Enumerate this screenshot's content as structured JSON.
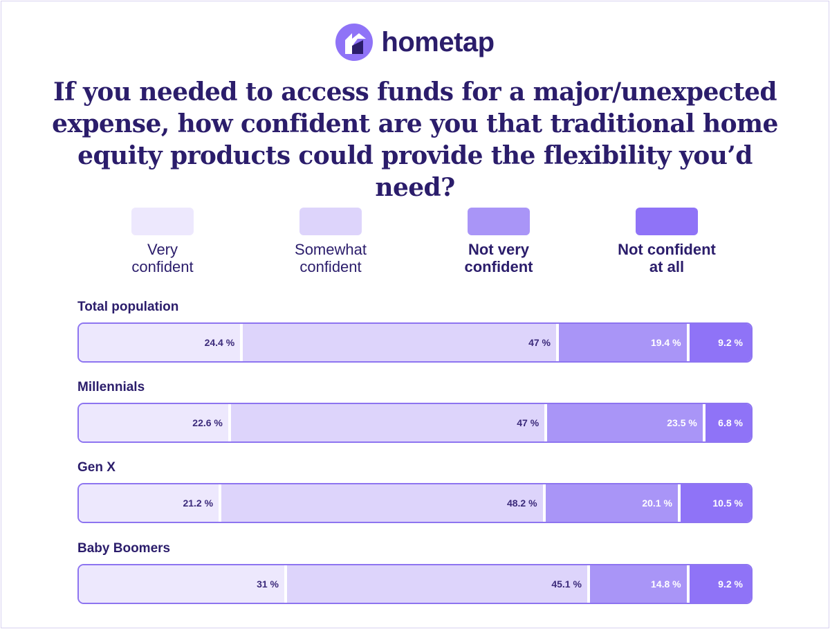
{
  "brand": {
    "name": "hometap",
    "icon": "hometap-logo-icon"
  },
  "title": "If you needed to access funds for a major/unexpected expense, how confident are you that traditional home equity products could provide the flexibility you’d need?",
  "colors": {
    "very_confident": "#ede8fd",
    "somewhat_confident": "#ddd4fb",
    "not_very_confident": "#a995f7",
    "not_confident_at_all": "#8f73f7",
    "text": "#2b1d6b"
  },
  "chart_data": {
    "type": "bar",
    "orientation": "horizontal",
    "stacked": true,
    "title": "If you needed to access funds for a major/unexpected expense, how confident are you that traditional home equity products could provide the flexibility you’d need?",
    "categories": [
      "Total population",
      "Millennials",
      "Gen X",
      "Baby Boomers"
    ],
    "unit": "%",
    "legend_position": "top",
    "series": [
      {
        "name": "Very confident",
        "line1": "Very",
        "line2": "confident",
        "color": "#ede8fd",
        "values": [
          24.4,
          22.6,
          21.2,
          31
        ]
      },
      {
        "name": "Somewhat confident",
        "line1": "Somewhat",
        "line2": "confident",
        "color": "#ddd4fb",
        "values": [
          47,
          47,
          48.2,
          45.1
        ]
      },
      {
        "name": "Not very confident",
        "line1": "Not very",
        "line2": "confident",
        "color": "#a995f7",
        "values": [
          19.4,
          23.5,
          20.1,
          14.8
        ]
      },
      {
        "name": "Not confident at all",
        "line1": "Not confident",
        "line2": "at all",
        "color": "#8f73f7",
        "values": [
          9.2,
          6.8,
          10.5,
          9.2
        ]
      }
    ],
    "labels": [
      [
        "24.4 %",
        "47 %",
        "19.4 %",
        "9.2 %"
      ],
      [
        "22.6 %",
        "47 %",
        "23.5 %",
        "6.8 %"
      ],
      [
        "21.2 %",
        "48.2 %",
        "20.1 %",
        "10.5 %"
      ],
      [
        "31 %",
        "45.1 %",
        "14.8 %",
        "9.2 %"
      ]
    ]
  }
}
